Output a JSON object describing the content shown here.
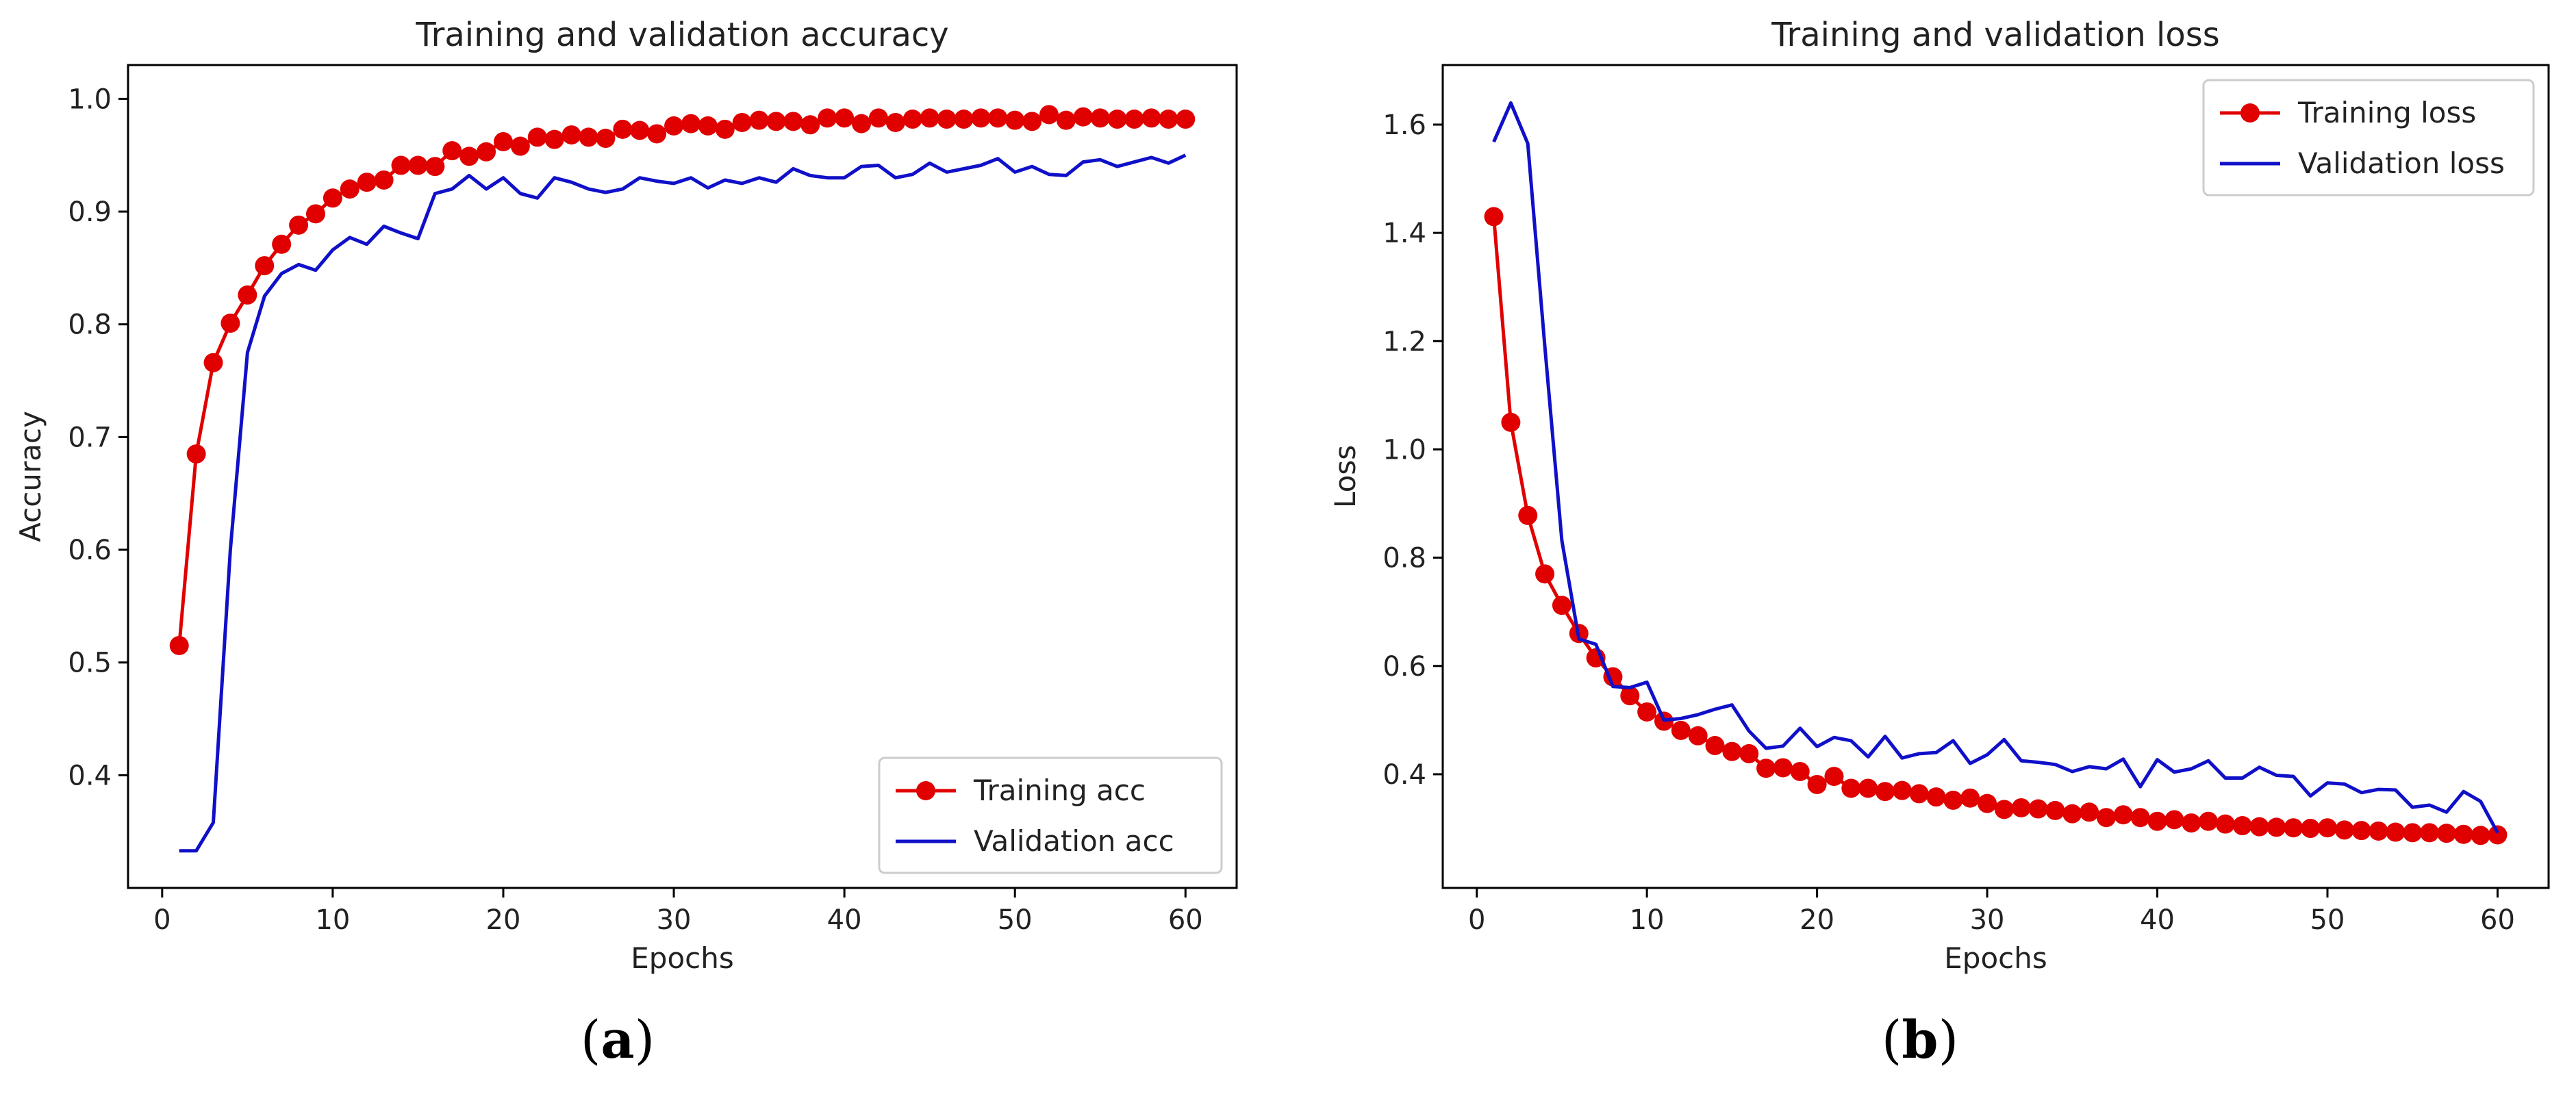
{
  "chart_data": [
    {
      "type": "line",
      "title": "Training and validation accuracy",
      "xlabel": "Epochs",
      "ylabel": "Accuracy",
      "xlim": [
        -2,
        63
      ],
      "ylim": [
        0.3,
        1.03
      ],
      "xticks": [
        0,
        10,
        20,
        30,
        40,
        50,
        60
      ],
      "yticks": [
        0.4,
        0.5,
        0.6,
        0.7,
        0.8,
        0.9,
        1.0
      ],
      "legend_position": "lower-right",
      "x": [
        1,
        2,
        3,
        4,
        5,
        6,
        7,
        8,
        9,
        10,
        11,
        12,
        13,
        14,
        15,
        16,
        17,
        18,
        19,
        20,
        21,
        22,
        23,
        24,
        25,
        26,
        27,
        28,
        29,
        30,
        31,
        32,
        33,
        34,
        35,
        36,
        37,
        38,
        39,
        40,
        41,
        42,
        43,
        44,
        45,
        46,
        47,
        48,
        49,
        50,
        51,
        52,
        53,
        54,
        55,
        56,
        57,
        58,
        59,
        60
      ],
      "series": [
        {
          "name": "Training acc",
          "style": "markers-line",
          "color": "#e00000",
          "values": [
            0.515,
            0.685,
            0.766,
            0.801,
            0.826,
            0.852,
            0.871,
            0.888,
            0.898,
            0.912,
            0.92,
            0.926,
            0.928,
            0.941,
            0.941,
            0.94,
            0.954,
            0.949,
            0.953,
            0.962,
            0.958,
            0.966,
            0.964,
            0.968,
            0.966,
            0.965,
            0.973,
            0.972,
            0.969,
            0.976,
            0.978,
            0.976,
            0.973,
            0.979,
            0.981,
            0.98,
            0.98,
            0.977,
            0.983,
            0.983,
            0.978,
            0.983,
            0.979,
            0.982,
            0.983,
            0.982,
            0.982,
            0.983,
            0.983,
            0.981,
            0.98,
            0.986,
            0.981,
            0.984,
            0.983,
            0.982,
            0.982,
            0.983,
            0.982,
            0.982
          ]
        },
        {
          "name": "Validation acc",
          "style": "line",
          "color": "#1010c8",
          "values": [
            0.333,
            0.333,
            0.358,
            0.6,
            0.775,
            0.825,
            0.845,
            0.853,
            0.848,
            0.866,
            0.877,
            0.871,
            0.887,
            0.881,
            0.876,
            0.916,
            0.92,
            0.932,
            0.92,
            0.93,
            0.916,
            0.912,
            0.93,
            0.926,
            0.92,
            0.917,
            0.92,
            0.93,
            0.927,
            0.925,
            0.93,
            0.921,
            0.928,
            0.925,
            0.93,
            0.926,
            0.938,
            0.932,
            0.93,
            0.93,
            0.94,
            0.941,
            0.93,
            0.933,
            0.943,
            0.935,
            0.938,
            0.941,
            0.947,
            0.935,
            0.94,
            0.933,
            0.932,
            0.944,
            0.946,
            0.94,
            0.944,
            0.948,
            0.943,
            0.95
          ]
        }
      ]
    },
    {
      "type": "line",
      "title": "Training and validation loss",
      "xlabel": "Epochs",
      "ylabel": "Loss",
      "xlim": [
        -2,
        63
      ],
      "ylim": [
        0.19,
        1.71
      ],
      "xticks": [
        0,
        10,
        20,
        30,
        40,
        50,
        60
      ],
      "yticks": [
        0.4,
        0.6,
        0.8,
        1.0,
        1.2,
        1.4,
        1.6
      ],
      "yticklabels": [
        "0.4",
        "0.6",
        "0.8",
        "1.0",
        "1.2",
        "1.4",
        "1.6"
      ],
      "legend_position": "upper-right",
      "x": [
        1,
        2,
        3,
        4,
        5,
        6,
        7,
        8,
        9,
        10,
        11,
        12,
        13,
        14,
        15,
        16,
        17,
        18,
        19,
        20,
        21,
        22,
        23,
        24,
        25,
        26,
        27,
        28,
        29,
        30,
        31,
        32,
        33,
        34,
        35,
        36,
        37,
        38,
        39,
        40,
        41,
        42,
        43,
        44,
        45,
        46,
        47,
        48,
        49,
        50,
        51,
        52,
        53,
        54,
        55,
        56,
        57,
        58,
        59,
        60
      ],
      "series": [
        {
          "name": "Training loss",
          "style": "markers-line",
          "color": "#e00000",
          "values": [
            1.43,
            1.05,
            0.878,
            0.77,
            0.712,
            0.66,
            0.615,
            0.58,
            0.545,
            0.515,
            0.498,
            0.481,
            0.471,
            0.453,
            0.442,
            0.438,
            0.411,
            0.412,
            0.405,
            0.381,
            0.396,
            0.374,
            0.374,
            0.368,
            0.37,
            0.364,
            0.358,
            0.352,
            0.356,
            0.346,
            0.335,
            0.338,
            0.336,
            0.333,
            0.327,
            0.33,
            0.32,
            0.325,
            0.32,
            0.313,
            0.316,
            0.31,
            0.313,
            0.308,
            0.305,
            0.303,
            0.302,
            0.301,
            0.3,
            0.301,
            0.297,
            0.296,
            0.295,
            0.293,
            0.292,
            0.292,
            0.291,
            0.289,
            0.287,
            0.288
          ]
        },
        {
          "name": "Validation loss",
          "style": "line",
          "color": "#1010c8",
          "values": [
            1.568,
            1.64,
            1.565,
            1.19,
            0.832,
            0.65,
            0.64,
            0.562,
            0.56,
            0.57,
            0.5,
            0.503,
            0.51,
            0.52,
            0.528,
            0.48,
            0.448,
            0.452,
            0.485,
            0.451,
            0.468,
            0.462,
            0.432,
            0.47,
            0.43,
            0.438,
            0.44,
            0.462,
            0.42,
            0.436,
            0.464,
            0.425,
            0.422,
            0.418,
            0.405,
            0.414,
            0.41,
            0.428,
            0.377,
            0.427,
            0.404,
            0.41,
            0.425,
            0.393,
            0.393,
            0.413,
            0.398,
            0.396,
            0.36,
            0.384,
            0.382,
            0.366,
            0.372,
            0.371,
            0.339,
            0.343,
            0.33,
            0.368,
            0.35,
            0.292
          ]
        }
      ]
    }
  ],
  "panels": {
    "a": {
      "open": "(",
      "letter": "a",
      "close": ")"
    },
    "b": {
      "open": "(",
      "letter": "b",
      "close": ")"
    }
  }
}
